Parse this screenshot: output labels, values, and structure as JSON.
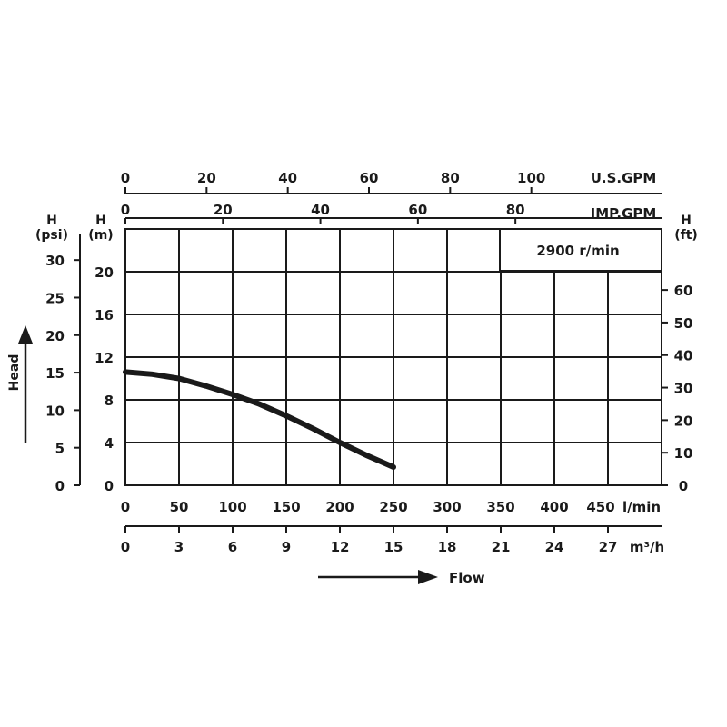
{
  "chart_data": {
    "type": "line",
    "annotation": "2900 r/min",
    "head_axis_title": "Head",
    "flow_axis_title": "Flow",
    "series": [
      {
        "x": [
          0,
          25,
          50,
          75,
          100,
          125,
          150,
          175,
          200,
          225,
          250
        ],
        "y": [
          10.6,
          10.4,
          10.0,
          9.3,
          8.5,
          7.6,
          6.5,
          5.3,
          4.0,
          2.8,
          1.7
        ]
      }
    ],
    "axes": {
      "flow_lmin": {
        "unit": "l/min",
        "ticks": [
          "0",
          "50",
          "100",
          "150",
          "200",
          "250",
          "300",
          "350",
          "400",
          "450"
        ],
        "range": [
          0,
          500
        ]
      },
      "flow_m3h": {
        "unit": "m³/h",
        "ticks": [
          "0",
          "3",
          "6",
          "9",
          "12",
          "15",
          "18",
          "21",
          "24",
          "27"
        ]
      },
      "flow_usgpm": {
        "unit": "U.S.GPM",
        "ticks": [
          "0",
          "20",
          "40",
          "60",
          "80",
          "100"
        ]
      },
      "flow_impgpm": {
        "unit": "IMP.GPM",
        "ticks": [
          "0",
          "20",
          "40",
          "60",
          "80"
        ]
      },
      "head_m": {
        "label_top": "H",
        "label_unit": "(m)",
        "ticks": [
          "0",
          "4",
          "8",
          "12",
          "16",
          "20"
        ],
        "range": [
          0,
          24
        ]
      },
      "head_psi": {
        "label_top": "H",
        "label_unit": "(psi)",
        "ticks": [
          "0",
          "5",
          "10",
          "15",
          "20",
          "25",
          "30"
        ]
      },
      "head_ft": {
        "label_top": "H",
        "label_unit": "(ft)",
        "ticks": [
          "0",
          "10",
          "20",
          "30",
          "40",
          "50",
          "60"
        ]
      }
    },
    "grid": true
  }
}
